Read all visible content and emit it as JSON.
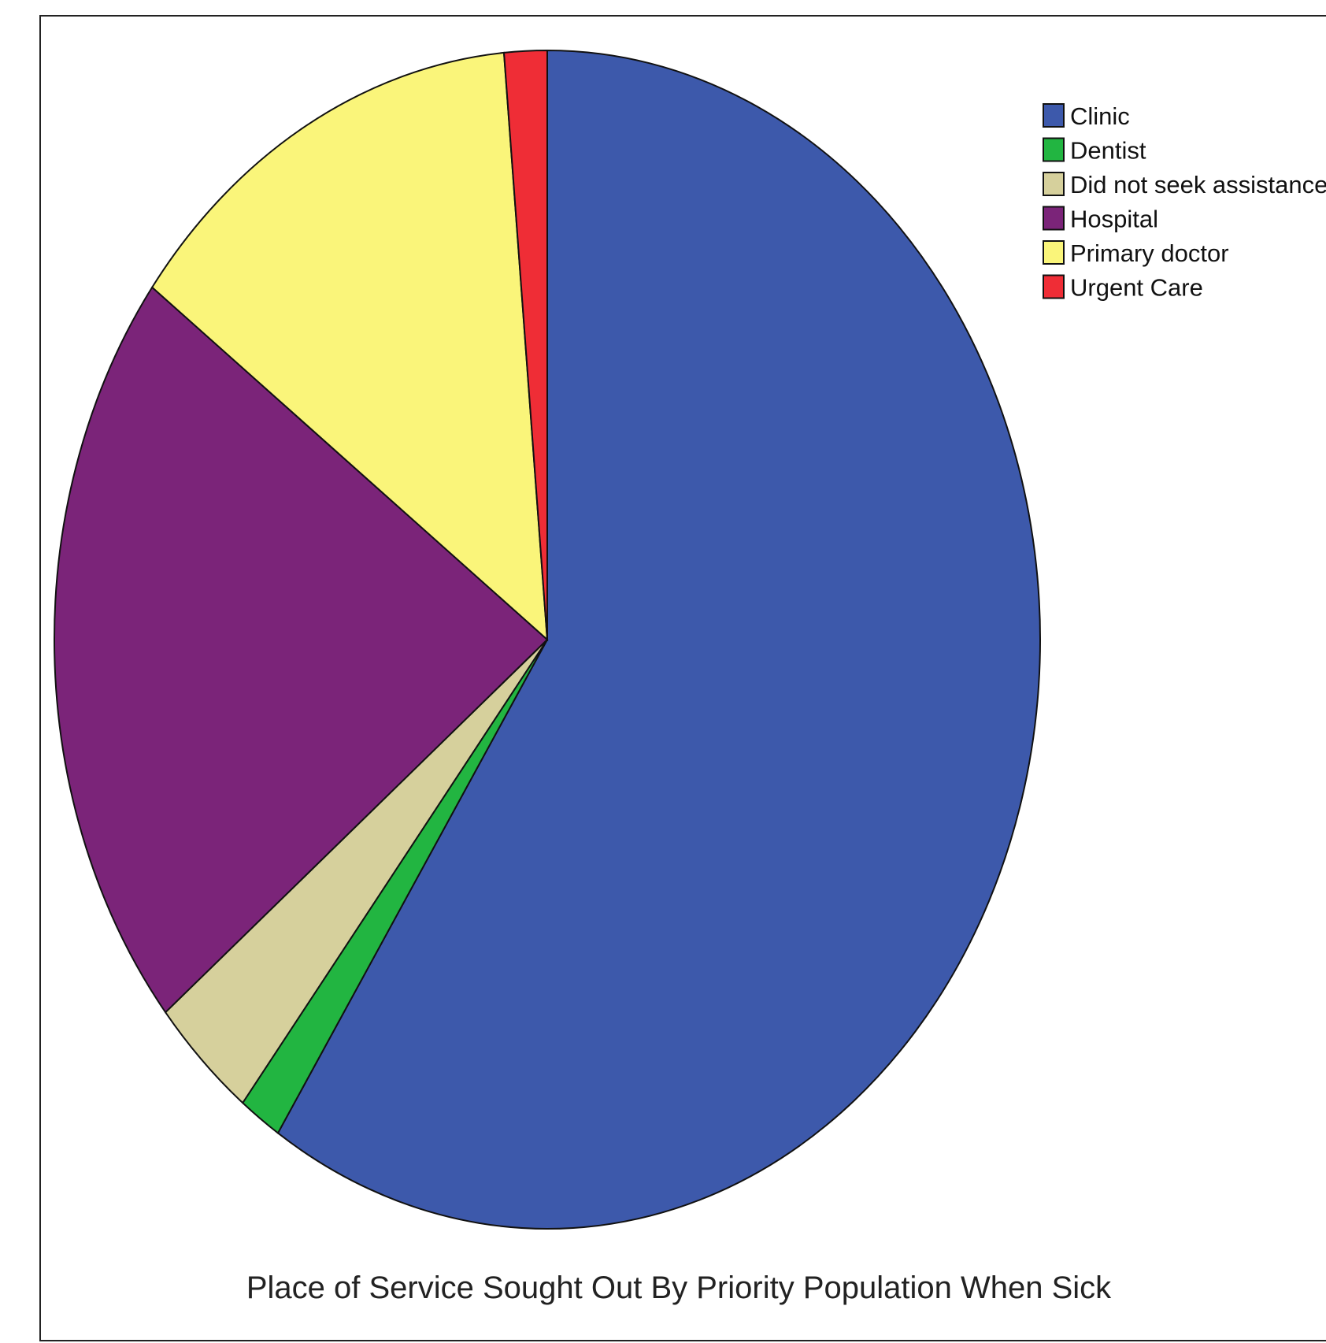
{
  "chart_data": {
    "type": "pie",
    "title": "Place of Service Sought Out By Priority Population When Sick",
    "categories": [
      "Clinic",
      "Dentist",
      "Did not seek assistance",
      "Hospital",
      "Primary doctor",
      "Urgent Care"
    ],
    "values": [
      59.2,
      1.4,
      3.5,
      21.1,
      13.4,
      1.4
    ],
    "colors": [
      "#3d59ab",
      "#22b541",
      "#d6d09c",
      "#7b2479",
      "#faf57a",
      "#ef2d36"
    ],
    "legend_position": "top-right",
    "start": "12 o'clock, clockwise"
  }
}
